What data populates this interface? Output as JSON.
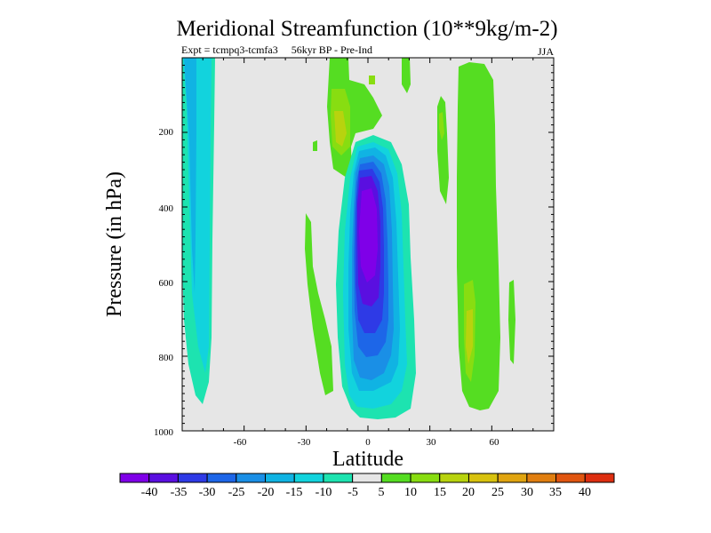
{
  "chart_data": {
    "type": "contour",
    "title": "Meridional Streamfunction (10**9kg/m-2)",
    "subtitle_left": "Expt = tcmpq3-tcmfa3     56kyr BP - Pre-Ind",
    "subtitle_right": "JJA",
    "xlabel": "Latitude",
    "ylabel": "Pressure (in hPa)",
    "xlim": [
      -90,
      90
    ],
    "ylim": [
      1000,
      0
    ],
    "x_ticks": [
      -60,
      -30,
      0,
      30,
      60
    ],
    "y_ticks": [
      200,
      400,
      600,
      800,
      1000
    ],
    "colorbar": {
      "levels": [
        -40,
        -35,
        -30,
        -25,
        -20,
        -15,
        -10,
        -5,
        5,
        10,
        15,
        20,
        25,
        30,
        35,
        40
      ],
      "colors": [
        "#7f00e8",
        "#5a0fe0",
        "#2e3ae6",
        "#1d66e8",
        "#1a8fe6",
        "#10b3e3",
        "#12d3dd",
        "#1de3b0",
        "#e6e6e6",
        "#55dd22",
        "#88dd11",
        "#b8d30e",
        "#d8c20e",
        "#e0a410",
        "#e07e10",
        "#e05510",
        "#dd2e10"
      ]
    },
    "features": [
      {
        "name": "southern-polar-negative-cell",
        "lat_range": [
          -88,
          -75
        ],
        "p_range": [
          15,
          940
        ],
        "min_value": -15
      },
      {
        "name": "equatorial-negative-cell",
        "lat_range": [
          -8,
          18
        ],
        "p_range": [
          260,
          980
        ],
        "min_value": -40
      },
      {
        "name": "tropical-positive-upper",
        "lat_range": [
          -17,
          5
        ],
        "p_range": [
          15,
          300
        ],
        "max_value": 20
      },
      {
        "name": "subtropical-positive-lower",
        "lat_range": [
          -30,
          -12
        ],
        "p_range": [
          270,
          940
        ],
        "max_value": 10
      },
      {
        "name": "northern-midlatitude-positive-cell",
        "lat_range": [
          40,
          65
        ],
        "p_range": [
          60,
          980
        ],
        "max_value": 20
      },
      {
        "name": "northern-extratropical-positive-band",
        "lat_range": [
          32,
          40
        ],
        "p_range": [
          90,
          460
        ],
        "max_value": 15
      }
    ]
  }
}
